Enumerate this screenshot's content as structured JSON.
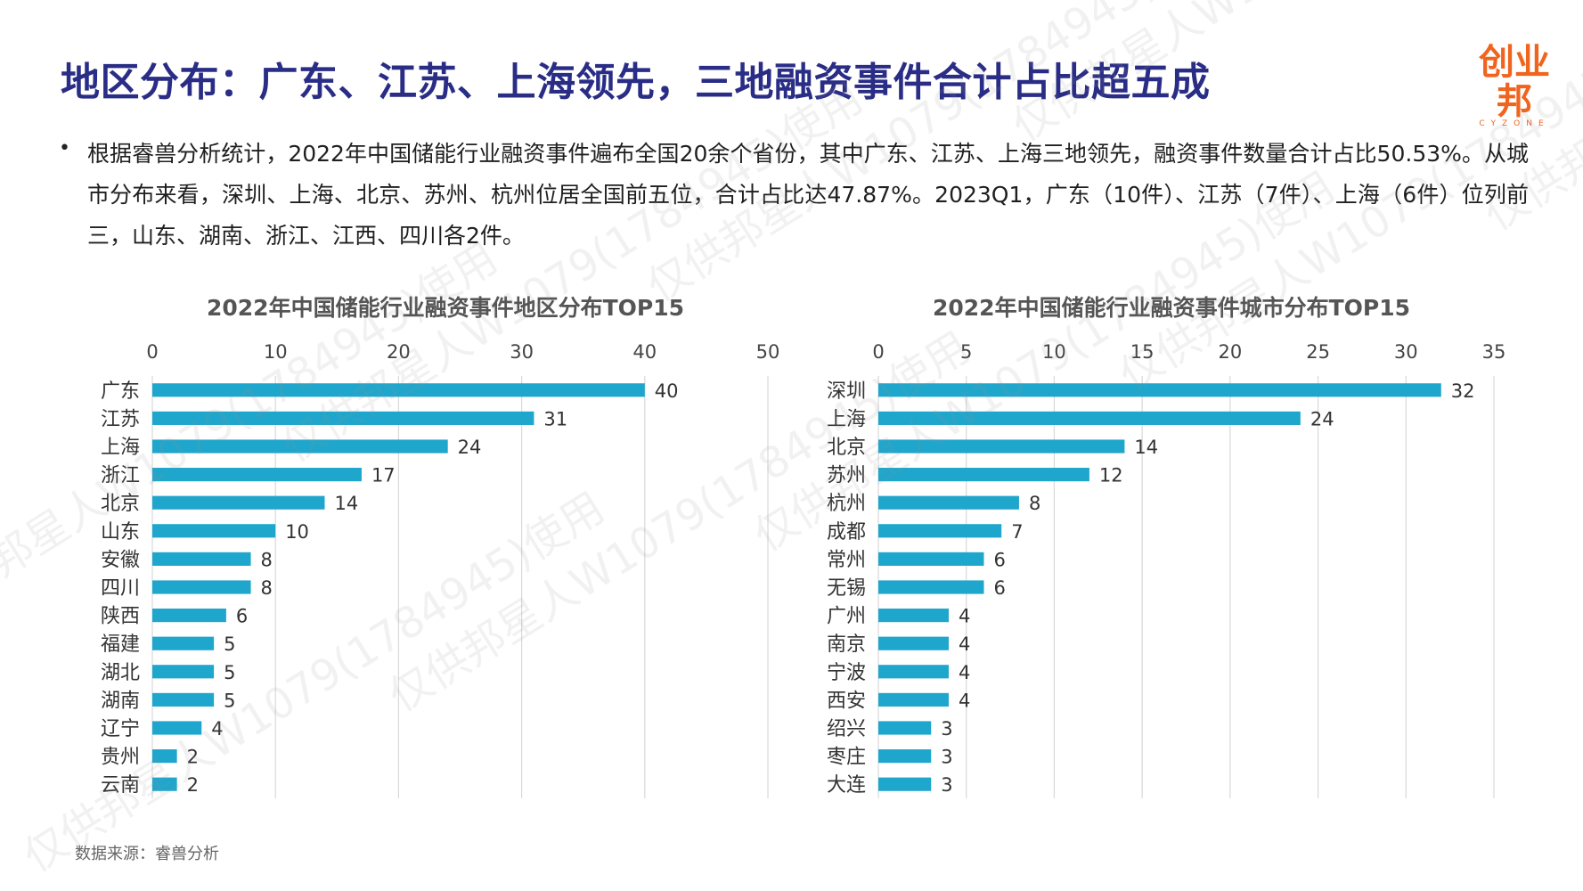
{
  "header": {
    "title": "地区分布：广东、江苏、上海领先，三地融资事件合计占比超五成",
    "logo_text": "创业邦",
    "logo_subtext": "CYZONE"
  },
  "summary": {
    "bullet": "•",
    "text": "根据睿兽分析统计，2022年中国储能行业融资事件遍布全国20余个省份，其中广东、江苏、上海三地领先，融资事件数量合计占比50.53%。从城市分布来看，深圳、上海、北京、苏州、杭州位居全国前五位，合计占比达47.87%。2023Q1，广东（10件）、江苏（7件）、上海（6件）位列前三，山东、湖南、浙江、江西、四川各2件。"
  },
  "footer": {
    "source": "数据来源：睿兽分析"
  },
  "watermark": {
    "text": "仅供邦星人W1079(1784945)使用"
  },
  "colors": {
    "bar": "#1fa6cc",
    "title": "#2a2d86",
    "brand": "#f0641e",
    "grid": "#d9d9d9"
  },
  "chart_data": [
    {
      "type": "bar",
      "orientation": "horizontal",
      "title": "2022年中国储能行业融资事件地区分布TOP15",
      "categories": [
        "广东",
        "江苏",
        "上海",
        "浙江",
        "北京",
        "山东",
        "安徽",
        "四川",
        "陕西",
        "福建",
        "湖北",
        "湖南",
        "辽宁",
        "贵州",
        "云南"
      ],
      "values": [
        40,
        31,
        24,
        17,
        14,
        10,
        8,
        8,
        6,
        5,
        5,
        5,
        4,
        2,
        2
      ],
      "xlim": [
        0,
        50
      ],
      "ticks": [
        0,
        10,
        20,
        30,
        40,
        50
      ],
      "axis_position": "top",
      "grid": true,
      "data_labels": true
    },
    {
      "type": "bar",
      "orientation": "horizontal",
      "title": "2022年中国储能行业融资事件城市分布TOP15",
      "categories": [
        "深圳",
        "上海",
        "北京",
        "苏州",
        "杭州",
        "成都",
        "常州",
        "无锡",
        "广州",
        "南京",
        "宁波",
        "西安",
        "绍兴",
        "枣庄",
        "大连"
      ],
      "values": [
        32,
        24,
        14,
        12,
        8,
        7,
        6,
        6,
        4,
        4,
        4,
        4,
        3,
        3,
        3
      ],
      "xlim": [
        0,
        35
      ],
      "ticks": [
        0,
        5,
        10,
        15,
        20,
        25,
        30,
        35
      ],
      "axis_position": "top",
      "grid": true,
      "data_labels": true
    }
  ]
}
